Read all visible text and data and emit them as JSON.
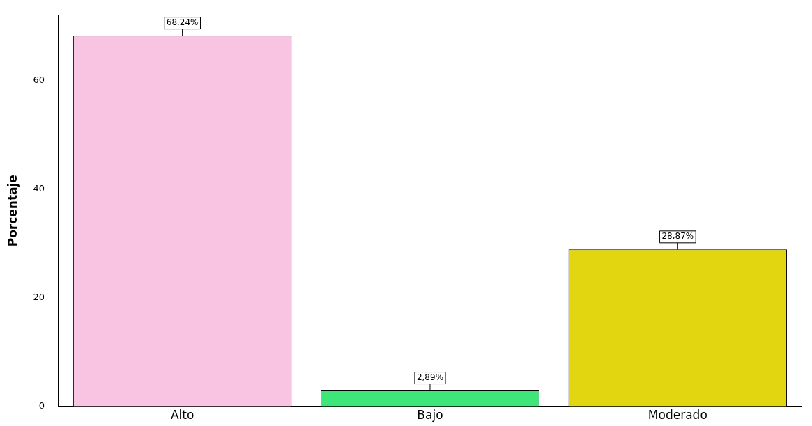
{
  "chart_data": {
    "type": "bar",
    "ylabel": "Porcentaje",
    "categories": [
      "Alto",
      "Bajo",
      "Moderado"
    ],
    "values": [
      68.24,
      2.89,
      28.87
    ],
    "colors": [
      "#f9c3e2",
      "#3ee67a",
      "#e1d60f"
    ],
    "value_labels": [
      "68,24%",
      "2,89%",
      "28,87%"
    ],
    "ylim": [
      0,
      72
    ],
    "yticks": [
      0,
      20,
      40,
      60
    ],
    "grid": false,
    "legend": false
  }
}
